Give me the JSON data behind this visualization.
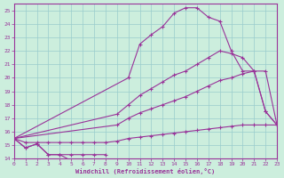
{
  "bg_color": "#cceedd",
  "grid_color": "#99cccc",
  "line_color": "#993399",
  "xlabel": "Windchill (Refroidissement éolien,°C)",
  "xlim": [
    0,
    23
  ],
  "ylim": [
    14,
    25.5
  ],
  "x_ticks": [
    0,
    1,
    2,
    3,
    4,
    5,
    6,
    7,
    8,
    9,
    10,
    11,
    12,
    13,
    14,
    15,
    16,
    17,
    18,
    19,
    20,
    21,
    22,
    23
  ],
  "y_ticks": [
    14,
    15,
    16,
    17,
    18,
    19,
    20,
    21,
    22,
    23,
    24,
    25
  ],
  "lines": [
    {
      "x": [
        0,
        1,
        2,
        3,
        4,
        5,
        6,
        7,
        8
      ],
      "y": [
        15.5,
        14.8,
        15.1,
        14.3,
        14.3,
        13.85,
        13.85,
        13.85,
        13.85
      ]
    },
    {
      "x": [
        0,
        1,
        2,
        3,
        4,
        5,
        6,
        7,
        8
      ],
      "y": [
        15.5,
        14.8,
        15.1,
        14.3,
        14.3,
        14.3,
        14.3,
        14.3,
        14.3
      ]
    },
    {
      "x": [
        0,
        1,
        2,
        3,
        4,
        5,
        6,
        7,
        8,
        9,
        10,
        11,
        12,
        13,
        14,
        15,
        16,
        17,
        18,
        19,
        20,
        21,
        22,
        23
      ],
      "y": [
        15.5,
        15.2,
        15.2,
        15.2,
        15.2,
        15.2,
        15.2,
        15.2,
        15.2,
        15.3,
        15.5,
        15.6,
        15.7,
        15.8,
        15.9,
        16.0,
        16.1,
        16.2,
        16.3,
        16.4,
        16.5,
        16.5,
        16.5,
        16.5
      ]
    },
    {
      "x": [
        0,
        9,
        10,
        11,
        12,
        13,
        14,
        15,
        16,
        17,
        18,
        19,
        20,
        21,
        22,
        23
      ],
      "y": [
        15.5,
        16.5,
        17.0,
        17.4,
        17.7,
        18.0,
        18.3,
        18.6,
        19.0,
        19.4,
        19.8,
        20.0,
        20.3,
        20.5,
        20.5,
        16.5
      ]
    },
    {
      "x": [
        0,
        9,
        10,
        11,
        12,
        13,
        14,
        15,
        16,
        17,
        18,
        19,
        20,
        21,
        22,
        23
      ],
      "y": [
        15.5,
        17.3,
        18.0,
        18.7,
        19.2,
        19.7,
        20.2,
        20.5,
        21.0,
        21.5,
        22.0,
        21.8,
        21.5,
        20.5,
        17.5,
        16.5
      ]
    },
    {
      "x": [
        0,
        10,
        11,
        12,
        13,
        14,
        15,
        16,
        17,
        18,
        19,
        20,
        21,
        22,
        23
      ],
      "y": [
        15.5,
        20.0,
        22.5,
        23.2,
        23.8,
        24.8,
        25.2,
        25.2,
        24.5,
        24.2,
        22.0,
        20.5,
        20.5,
        17.5,
        16.5
      ]
    }
  ]
}
